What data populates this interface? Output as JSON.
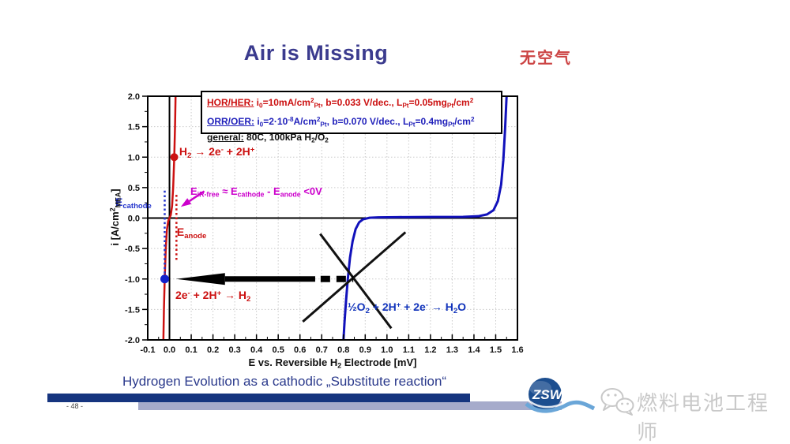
{
  "slide": {
    "title": "Air is Missing",
    "title_cn": "无空气",
    "caption": "Hydrogen Evolution as a cathodic „Substitute reaction“",
    "page_number": "- 48 -",
    "logo_text": "ZSW",
    "watermark_text": "燃料电池工程师"
  },
  "legend": {
    "lines": [
      {
        "label": "HOR/HER:",
        "rest": " i~0~=10mA/cm^2^~Pt~,  b=0.033 V/dec., L~Pt~=0.05mg~Pt~/cm^2^",
        "color": "#cc1111"
      },
      {
        "label": "ORR/OER:",
        "rest": " i~0~=2·10^-8^A/cm^2^~Pt~, b=0.070 V/dec., L~Pt~=0.4mg~Pt~/cm^2^",
        "color": "#2222bb"
      },
      {
        "label": "general:",
        "rest": " 80C, 100kPa H~2~/O~2~",
        "color": "#111111"
      }
    ]
  },
  "chart_data": {
    "type": "line",
    "xlabel": "E vs. Reversible H~2~ Electrode [mV]",
    "ylabel": "i [A/cm^2^~MEA~]",
    "xlim": [
      -0.1,
      1.6
    ],
    "ylim": [
      -2,
      2
    ],
    "grid": true,
    "x_ticks": [
      "-0.1",
      "0.0",
      "0.1",
      "0.2",
      "0.3",
      "0.4",
      "0.5",
      "0.6",
      "0.7",
      "0.8",
      "0.9",
      "1.0",
      "1.1",
      "1.2",
      "1.3",
      "1.4",
      "1.5",
      "1.6"
    ],
    "y_ticks": [
      "2.0",
      "1.5",
      "1.0",
      "0.5",
      "0.0",
      "-0.5",
      "-1.0",
      "-1.5",
      "-2.0"
    ],
    "series": [
      {
        "name": "HOR-HER-hydrogen-electrode",
        "color": "#cc1111",
        "width": 2.5,
        "points": [
          [
            -0.028,
            -2
          ],
          [
            -0.0255,
            -1.5
          ],
          [
            -0.022,
            -1.0
          ],
          [
            -0.017,
            -0.5
          ],
          [
            -0.012,
            -0.2
          ],
          [
            -0.006,
            -0.05
          ],
          [
            0,
            0
          ],
          [
            0.006,
            0.05
          ],
          [
            0.012,
            0.2
          ],
          [
            0.017,
            0.5
          ],
          [
            0.022,
            1.0
          ],
          [
            0.0255,
            1.5
          ],
          [
            0.028,
            2
          ]
        ]
      },
      {
        "name": "ORR-OER-oxygen-electrode",
        "color": "#1111bb",
        "width": 3,
        "points": [
          [
            0.8,
            -2
          ],
          [
            0.805,
            -1.7
          ],
          [
            0.812,
            -1.35
          ],
          [
            0.82,
            -1.0
          ],
          [
            0.83,
            -0.65
          ],
          [
            0.842,
            -0.38
          ],
          [
            0.856,
            -0.18
          ],
          [
            0.872,
            -0.07
          ],
          [
            0.89,
            -0.02
          ],
          [
            0.92,
            0.005
          ],
          [
            0.96,
            0.012
          ],
          [
            1.05,
            0.015
          ],
          [
            1.2,
            0.018
          ],
          [
            1.35,
            0.02
          ],
          [
            1.42,
            0.03
          ],
          [
            1.46,
            0.06
          ],
          [
            1.49,
            0.13
          ],
          [
            1.51,
            0.28
          ],
          [
            1.525,
            0.55
          ],
          [
            1.535,
            0.95
          ],
          [
            1.543,
            1.45
          ],
          [
            1.55,
            2.0
          ]
        ]
      }
    ],
    "markers": [
      {
        "name": "anode-operating-point",
        "x": 0.022,
        "y": 1.0,
        "r": 5,
        "color": "#cc1111"
      },
      {
        "name": "cathode-operating-point",
        "x": -0.022,
        "y": -1.0,
        "r": 5.5,
        "color": "#1122cc"
      }
    ],
    "shapes": [
      {
        "name": "cross-out-line-1",
        "type": "line",
        "from": [
          0.693,
          -0.26
        ],
        "to": [
          1.02,
          -1.81
        ],
        "width": 3,
        "color": "#111"
      },
      {
        "name": "cross-out-line-2",
        "type": "line",
        "from": [
          0.613,
          -1.7
        ],
        "to": [
          1.085,
          -0.233
        ],
        "width": 3,
        "color": "#111"
      },
      {
        "name": "e-anode-dotted-line",
        "type": "line",
        "from": [
          0.032,
          0.38
        ],
        "to": [
          0.032,
          -0.7
        ],
        "width": 2.5,
        "dash": "2.5 3.2",
        "color": "#cc1111"
      },
      {
        "name": "e-cathode-dotted-line",
        "type": "line",
        "from": [
          -0.022,
          0.45
        ],
        "to": [
          -0.022,
          -1.0
        ],
        "width": 2.5,
        "dash": "2.5 3.2",
        "color": "#2233cc"
      },
      {
        "name": "arrow-dashes",
        "type": "line",
        "from": [
          0.695,
          -1.0
        ],
        "to": [
          0.845,
          -1.0
        ],
        "width": 8,
        "dash": "12 8",
        "color": "#000"
      },
      {
        "name": "operating-point-arrow",
        "type": "arrow",
        "from": [
          0.67,
          -1.0
        ],
        "to": [
          0.03,
          -1.0
        ],
        "width": 7,
        "head_l": 62,
        "head_w": 15,
        "color": "#000"
      },
      {
        "name": "eir-free-arrow",
        "type": "arrow",
        "from": [
          0.16,
          0.44
        ],
        "to": [
          0.052,
          0.185
        ],
        "width": 2.5,
        "head_l": 13,
        "head_w": 9,
        "color": "#cc00cc"
      }
    ],
    "annotations": [
      {
        "name": "h2-oxidation-label",
        "text": "H~2~ → 2e^-^ + 2H^+^",
        "x": 0.045,
        "y": 1.2,
        "color": "#cc1111",
        "size": 14
      },
      {
        "name": "e-cathode-label",
        "text": "E~cathode~",
        "x": -0.249,
        "y": 0.37,
        "color": "#2233cc",
        "size": 14
      },
      {
        "name": "eir-free-label",
        "text": "E~iR-free~ ≈ E~cathode~ - E~anode~ <0V",
        "x": 0.096,
        "y": 0.54,
        "color": "#cc00cc",
        "size": 13
      },
      {
        "name": "e-anode-label",
        "text": "E~anode~",
        "x": 0.034,
        "y": -0.12,
        "color": "#cc1111",
        "size": 14
      },
      {
        "name": "her-reaction-label",
        "text": "2e^-^ + 2H^+^ →  H~2~",
        "x": 0.027,
        "y": -1.16,
        "color": "#cc1111",
        "size": 14
      },
      {
        "name": "orr-reaction-label",
        "text": "½O~2~ + 2H^+^ + 2e^-^ → H~2~O",
        "x": 0.819,
        "y": -1.35,
        "color": "#1133bb",
        "size": 14
      }
    ]
  }
}
